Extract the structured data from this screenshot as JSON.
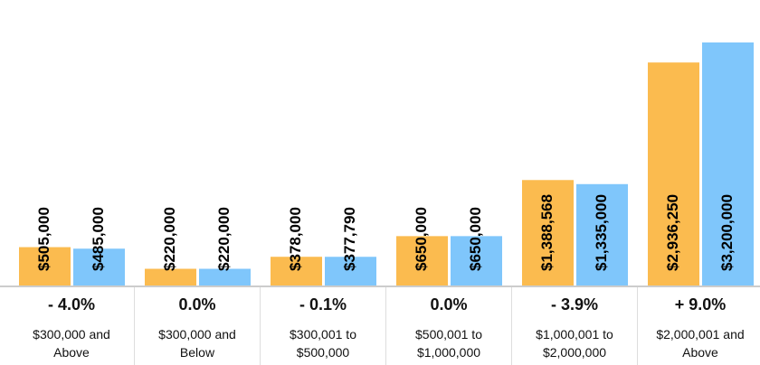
{
  "chart_data": {
    "type": "bar",
    "categories": [
      "$300,000 and Above",
      "$300,000 and Below",
      "$300,001 to $500,000",
      "$500,001 to $1,000,000",
      "$1,000,001 to $2,000,000",
      "$2,000,001 and Above"
    ],
    "changes": [
      "- 4.0%",
      "0.0%",
      "- 0.1%",
      "0.0%",
      "- 3.9%",
      "+ 9.0%"
    ],
    "series": [
      {
        "color": "#fbbb4f",
        "values": [
          505000,
          220000,
          378000,
          650000,
          1388568,
          2936250
        ],
        "value_labels": [
          "$505,000",
          "$220,000",
          "$378,000",
          "$650,000",
          "$1,388,568",
          "$2,936,250"
        ]
      },
      {
        "color": "#7fc6fb",
        "values": [
          485000,
          220000,
          377790,
          650000,
          1335000,
          3200000
        ],
        "value_labels": [
          "$485,000",
          "$220,000",
          "$377,790",
          "$650,000",
          "$1,335,000",
          "$3,200,000"
        ]
      }
    ]
  }
}
